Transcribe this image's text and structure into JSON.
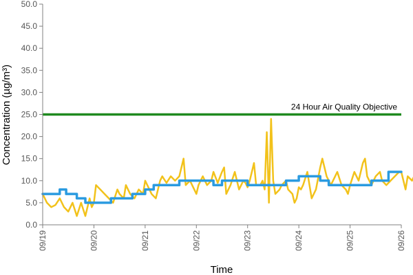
{
  "chart_data": {
    "type": "line",
    "title": "",
    "xlabel": "Time",
    "ylabel": "Concentration (µg/m³)",
    "ylim": [
      0,
      50
    ],
    "ytick_step": 5,
    "xlim": [
      "2020-09-19",
      "2020-09-26"
    ],
    "x_ticks": [
      {
        "date": "2020-09-19",
        "label": "09/19"
      },
      {
        "date": "2020-09-20",
        "label": "09/20"
      },
      {
        "date": "2020-09-21",
        "label": "09/21"
      },
      {
        "date": "2020-09-22",
        "label": "09/22"
      },
      {
        "date": "2020-09-23",
        "label": "09/23"
      },
      {
        "date": "2020-09-24",
        "label": "09/24"
      },
      {
        "date": "2020-09-25",
        "label": "09/25"
      },
      {
        "date": "2020-09-26",
        "label": "09/26"
      }
    ],
    "grid": false,
    "legend": "none",
    "objective": {
      "label": "24 Hour Air Quality Objective",
      "value": 25,
      "color": "#1f8a1f"
    },
    "series": [
      {
        "color": "#f2c21b",
        "points": [
          [
            "2020-09-19 00:00",
            7
          ],
          [
            "2020-09-19 02:00",
            5
          ],
          [
            "2020-09-19 04:00",
            4
          ],
          [
            "2020-09-19 06:00",
            4.5
          ],
          [
            "2020-09-19 08:00",
            6
          ],
          [
            "2020-09-19 10:00",
            4
          ],
          [
            "2020-09-19 12:00",
            3
          ],
          [
            "2020-09-19 14:00",
            5
          ],
          [
            "2020-09-19 15:00",
            3.5
          ],
          [
            "2020-09-19 16:00",
            2
          ],
          [
            "2020-09-19 18:00",
            5
          ],
          [
            "2020-09-19 19:00",
            3.5
          ],
          [
            "2020-09-19 20:00",
            2
          ],
          [
            "2020-09-19 22:00",
            6
          ],
          [
            "2020-09-19 23:00",
            4
          ],
          [
            "2020-09-20 00:00",
            5
          ],
          [
            "2020-09-20 01:00",
            9
          ],
          [
            "2020-09-20 03:00",
            8
          ],
          [
            "2020-09-20 05:00",
            7
          ],
          [
            "2020-09-20 07:00",
            6
          ],
          [
            "2020-09-20 09:00",
            5
          ],
          [
            "2020-09-20 11:00",
            8
          ],
          [
            "2020-09-20 12:00",
            7
          ],
          [
            "2020-09-20 14:00",
            6
          ],
          [
            "2020-09-20 15:00",
            9
          ],
          [
            "2020-09-20 17:00",
            7
          ],
          [
            "2020-09-20 19:00",
            6
          ],
          [
            "2020-09-20 21:00",
            8
          ],
          [
            "2020-09-20 23:00",
            7
          ],
          [
            "2020-09-21 00:00",
            10
          ],
          [
            "2020-09-21 01:00",
            9
          ],
          [
            "2020-09-21 03:00",
            7
          ],
          [
            "2020-09-21 05:00",
            6
          ],
          [
            "2020-09-21 07:00",
            10
          ],
          [
            "2020-09-21 08:00",
            11
          ],
          [
            "2020-09-21 10:00",
            9.5
          ],
          [
            "2020-09-21 12:00",
            11
          ],
          [
            "2020-09-21 14:00",
            10
          ],
          [
            "2020-09-21 16:00",
            11
          ],
          [
            "2020-09-21 18:00",
            15
          ],
          [
            "2020-09-21 19:00",
            9
          ],
          [
            "2020-09-21 21:00",
            10
          ],
          [
            "2020-09-21 23:00",
            8
          ],
          [
            "2020-09-22 00:00",
            7
          ],
          [
            "2020-09-22 01:00",
            9
          ],
          [
            "2020-09-22 03:00",
            11
          ],
          [
            "2020-09-22 05:00",
            9
          ],
          [
            "2020-09-22 07:00",
            10
          ],
          [
            "2020-09-22 08:00",
            12
          ],
          [
            "2020-09-22 10:00",
            9.5
          ],
          [
            "2020-09-22 12:00",
            12
          ],
          [
            "2020-09-22 13:00",
            13
          ],
          [
            "2020-09-22 14:00",
            7
          ],
          [
            "2020-09-22 16:00",
            9
          ],
          [
            "2020-09-22 18:00",
            12
          ],
          [
            "2020-09-22 20:00",
            8
          ],
          [
            "2020-09-22 22:00",
            10
          ],
          [
            "2020-09-22 23:00",
            9.5
          ],
          [
            "2020-09-23 00:00",
            8.5
          ],
          [
            "2020-09-23 01:00",
            10
          ],
          [
            "2020-09-23 03:00",
            14
          ],
          [
            "2020-09-23 04:00",
            9
          ],
          [
            "2020-09-23 06:00",
            9
          ],
          [
            "2020-09-23 07:00",
            10
          ],
          [
            "2020-09-23 08:00",
            8
          ],
          [
            "2020-09-23 09:00",
            21
          ],
          [
            "2020-09-23 10:00",
            5
          ],
          [
            "2020-09-23 11:00",
            24
          ],
          [
            "2020-09-23 12:00",
            10
          ],
          [
            "2020-09-23 13:00",
            7
          ],
          [
            "2020-09-23 15:00",
            8
          ],
          [
            "2020-09-23 16:00",
            9
          ],
          [
            "2020-09-23 18:00",
            10
          ],
          [
            "2020-09-23 19:00",
            8
          ],
          [
            "2020-09-23 21:00",
            7
          ],
          [
            "2020-09-23 22:00",
            5
          ],
          [
            "2020-09-23 23:00",
            6
          ],
          [
            "2020-09-24 00:00",
            8.5
          ],
          [
            "2020-09-24 01:00",
            8
          ],
          [
            "2020-09-24 02:00",
            9
          ],
          [
            "2020-09-24 04:00",
            12
          ],
          [
            "2020-09-24 05:00",
            9
          ],
          [
            "2020-09-24 06:00",
            6
          ],
          [
            "2020-09-24 08:00",
            8
          ],
          [
            "2020-09-24 10:00",
            13
          ],
          [
            "2020-09-24 11:00",
            15
          ],
          [
            "2020-09-24 13:00",
            11
          ],
          [
            "2020-09-24 15:00",
            9
          ],
          [
            "2020-09-24 17:00",
            11
          ],
          [
            "2020-09-24 18:00",
            12
          ],
          [
            "2020-09-24 20:00",
            9
          ],
          [
            "2020-09-24 22:00",
            8
          ],
          [
            "2020-09-24 23:00",
            7
          ],
          [
            "2020-09-25 00:00",
            9
          ],
          [
            "2020-09-25 02:00",
            12
          ],
          [
            "2020-09-25 04:00",
            10
          ],
          [
            "2020-09-25 06:00",
            14
          ],
          [
            "2020-09-25 07:00",
            15
          ],
          [
            "2020-09-25 08:00",
            11
          ],
          [
            "2020-09-25 10:00",
            9
          ],
          [
            "2020-09-25 12:00",
            11
          ],
          [
            "2020-09-25 14:00",
            12
          ],
          [
            "2020-09-25 15:00",
            10
          ],
          [
            "2020-09-25 17:00",
            9
          ],
          [
            "2020-09-25 19:00",
            10
          ],
          [
            "2020-09-25 21:00",
            11
          ],
          [
            "2020-09-25 23:00",
            12
          ],
          [
            "2020-09-26 00:00",
            12
          ],
          [
            "2020-09-26 02:00",
            8
          ],
          [
            "2020-09-26 03:00",
            11
          ],
          [
            "2020-09-26 05:00",
            10
          ],
          [
            "2020-09-26 07:00",
            12
          ],
          [
            "2020-09-26 08:00",
            7
          ],
          [
            "2020-09-26 09:00",
            13
          ],
          [
            "2020-09-26 10:00",
            8
          ],
          [
            "2020-09-26 11:00",
            12
          ],
          [
            "2020-09-26 12:00",
            10
          ],
          [
            "2020-09-26 14:00",
            11
          ],
          [
            "2020-09-26 15:00",
            12
          ]
        ]
      },
      {
        "color": "#2b9be0",
        "points": [
          [
            "2020-09-19 00:00",
            7
          ],
          [
            "2020-09-19 08:00",
            7
          ],
          [
            "2020-09-19 08:00",
            8
          ],
          [
            "2020-09-19 11:00",
            8
          ],
          [
            "2020-09-19 11:00",
            7
          ],
          [
            "2020-09-19 16:00",
            7
          ],
          [
            "2020-09-19 16:00",
            6
          ],
          [
            "2020-09-19 20:00",
            6
          ],
          [
            "2020-09-19 20:00",
            5
          ],
          [
            "2020-09-20 08:00",
            5
          ],
          [
            "2020-09-20 08:00",
            6
          ],
          [
            "2020-09-20 18:00",
            6
          ],
          [
            "2020-09-20 18:00",
            7
          ],
          [
            "2020-09-21 00:00",
            7
          ],
          [
            "2020-09-21 00:00",
            8
          ],
          [
            "2020-09-21 04:00",
            8
          ],
          [
            "2020-09-21 04:00",
            9
          ],
          [
            "2020-09-21 16:00",
            9
          ],
          [
            "2020-09-21 16:00",
            10
          ],
          [
            "2020-09-22 08:00",
            10
          ],
          [
            "2020-09-22 08:00",
            9
          ],
          [
            "2020-09-22 12:00",
            9
          ],
          [
            "2020-09-22 12:00",
            10
          ],
          [
            "2020-09-23 00:00",
            10
          ],
          [
            "2020-09-23 00:00",
            9
          ],
          [
            "2020-09-23 18:00",
            9
          ],
          [
            "2020-09-23 18:00",
            10
          ],
          [
            "2020-09-24 00:00",
            10
          ],
          [
            "2020-09-24 00:00",
            11
          ],
          [
            "2020-09-24 10:00",
            11
          ],
          [
            "2020-09-24 10:00",
            10
          ],
          [
            "2020-09-24 14:00",
            10
          ],
          [
            "2020-09-24 14:00",
            9
          ],
          [
            "2020-09-25 10:00",
            9
          ],
          [
            "2020-09-25 10:00",
            10
          ],
          [
            "2020-09-25 18:00",
            10
          ],
          [
            "2020-09-25 18:00",
            12
          ],
          [
            "2020-09-26 00:00",
            12
          ]
        ]
      }
    ]
  }
}
